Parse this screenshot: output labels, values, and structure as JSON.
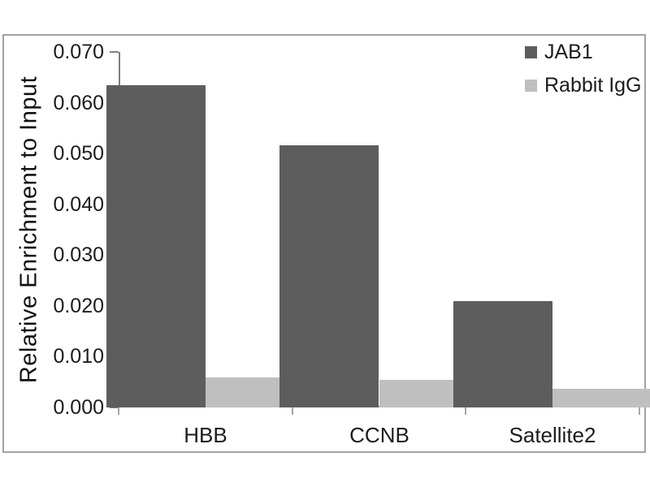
{
  "chart_data": {
    "type": "bar",
    "title": "",
    "categories": [
      "HBB",
      "CCNB",
      "Satellite2"
    ],
    "series": [
      {
        "name": "JAB1",
        "color": "#5d5d5d",
        "values": [
          0.0635,
          0.0517,
          0.021
        ]
      },
      {
        "name": "Rabbit IgG",
        "color": "#bfbfbf",
        "values": [
          0.0059,
          0.0054,
          0.0036
        ]
      }
    ],
    "xlabel": "",
    "ylabel": "Relative Enrichment to Input",
    "ylim": [
      0,
      0.07
    ],
    "ytick_step": 0.01,
    "ytick_labels": [
      "0.000",
      "0.010",
      "0.020",
      "0.030",
      "0.040",
      "0.050",
      "0.060",
      "0.070"
    ],
    "grid": false,
    "legend_position": "top-right",
    "bar_gap_ratio": 1.5,
    "colors": {
      "y_axis_line": "#7f7f7f",
      "x_axis_line": "#a6a6a6",
      "chart_border": "#a3a3a3",
      "text": "#1c1c1c"
    }
  }
}
